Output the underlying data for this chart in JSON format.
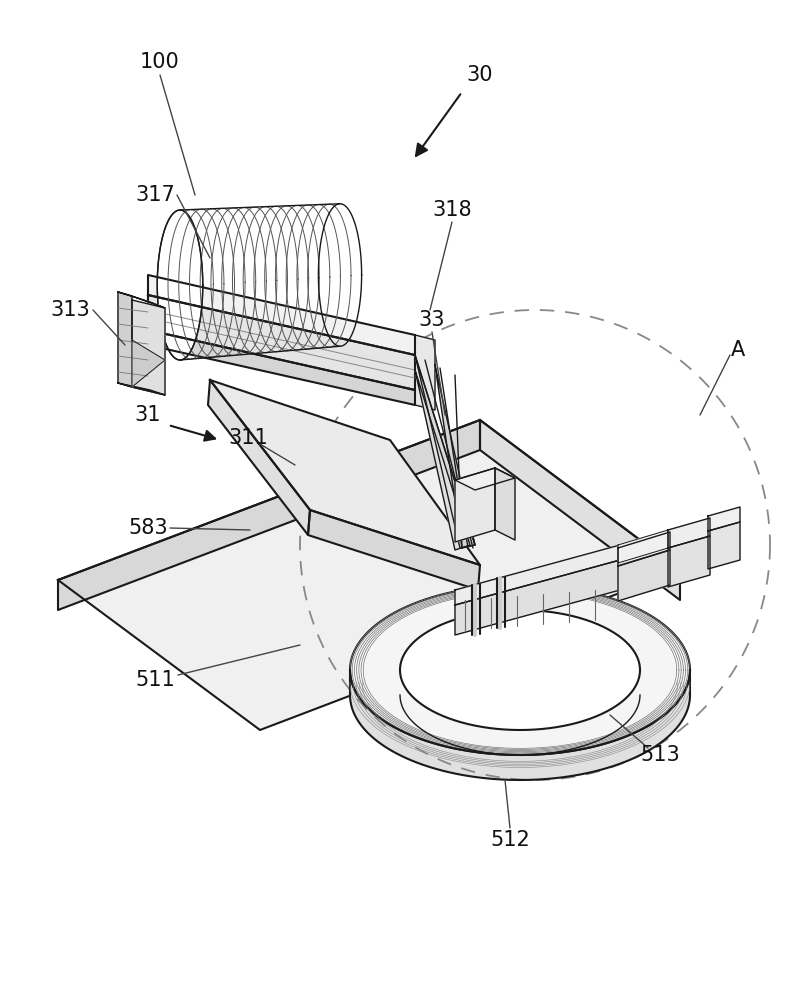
{
  "bg_color": "#ffffff",
  "line_color": "#1a1a1a",
  "gray_light": "#c8c8c8",
  "gray_mid": "#a0a0a0",
  "gray_dark": "#606060",
  "dashed_color": "#888888",
  "label_color": "#111111",
  "fig_width": 7.96,
  "fig_height": 10.0,
  "dpi": 100
}
